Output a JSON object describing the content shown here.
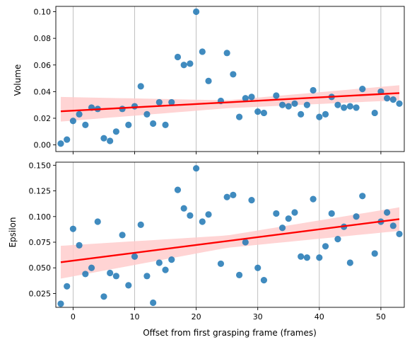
{
  "chart_data": [
    {
      "type": "scatter",
      "title": "",
      "xlabel": "",
      "ylabel": "Volume",
      "xlim": [
        -2.8,
        53.8
      ],
      "ylim": [
        -0.005,
        0.104
      ],
      "xticks": [
        0,
        10,
        20,
        30,
        40,
        50
      ],
      "xtick_labels": [
        "",
        "",
        "",
        "",
        "",
        ""
      ],
      "yticks": [
        0.0,
        0.02,
        0.04,
        0.06,
        0.08,
        0.1
      ],
      "ytick_labels": [
        "0.00",
        "0.02",
        "0.04",
        "0.06",
        "0.08",
        "0.10"
      ],
      "grid": "vertical",
      "points": [
        [
          -2,
          0.001
        ],
        [
          -1,
          0.004
        ],
        [
          0,
          0.018
        ],
        [
          1,
          0.023
        ],
        [
          2,
          0.015
        ],
        [
          3,
          0.028
        ],
        [
          4,
          0.027
        ],
        [
          5,
          0.005
        ],
        [
          6,
          0.003
        ],
        [
          7,
          0.01
        ],
        [
          8,
          0.027
        ],
        [
          9,
          0.015
        ],
        [
          10,
          0.029
        ],
        [
          11,
          0.044
        ],
        [
          12,
          0.023
        ],
        [
          13,
          0.016
        ],
        [
          14,
          0.032
        ],
        [
          15,
          0.015
        ],
        [
          16,
          0.032
        ],
        [
          17,
          0.066
        ],
        [
          18,
          0.06
        ],
        [
          19,
          0.061
        ],
        [
          20,
          0.1
        ],
        [
          21,
          0.07
        ],
        [
          22,
          0.048
        ],
        [
          24,
          0.033
        ],
        [
          25,
          0.069
        ],
        [
          26,
          0.053
        ],
        [
          27,
          0.021
        ],
        [
          28,
          0.035
        ],
        [
          29,
          0.036
        ],
        [
          30,
          0.025
        ],
        [
          31,
          0.024
        ],
        [
          33,
          0.037
        ],
        [
          34,
          0.03
        ],
        [
          35,
          0.029
        ],
        [
          36,
          0.031
        ],
        [
          37,
          0.023
        ],
        [
          38,
          0.03
        ],
        [
          39,
          0.041
        ],
        [
          40,
          0.021
        ],
        [
          41,
          0.023
        ],
        [
          42,
          0.036
        ],
        [
          43,
          0.03
        ],
        [
          44,
          0.028
        ],
        [
          45,
          0.029
        ],
        [
          46,
          0.028
        ],
        [
          47,
          0.042
        ],
        [
          49,
          0.024
        ],
        [
          50,
          0.04
        ],
        [
          51,
          0.035
        ],
        [
          52,
          0.034
        ],
        [
          53,
          0.031
        ]
      ],
      "fit_line": {
        "x": [
          -2,
          53
        ],
        "y": [
          0.0252,
          0.0389
        ]
      },
      "ci_band": {
        "x": [
          -2,
          25,
          53
        ],
        "lower": [
          0.0175,
          0.0275,
          0.0335
        ],
        "upper": [
          0.036,
          0.0335,
          0.0448
        ]
      },
      "colors": {
        "points": "#1f77b4",
        "fit": "#ff0000",
        "band": "#ffcccc",
        "grid": "#b0b0b0"
      }
    },
    {
      "type": "scatter",
      "title": "",
      "xlabel": "Offset from first grasping frame (frames)",
      "ylabel": "Epsilon",
      "xlim": [
        -2.8,
        53.8
      ],
      "ylim": [
        0.0115,
        0.153
      ],
      "xticks": [
        0,
        10,
        20,
        30,
        40,
        50
      ],
      "xtick_labels": [
        "0",
        "10",
        "20",
        "30",
        "40",
        "50"
      ],
      "yticks": [
        0.025,
        0.05,
        0.075,
        0.1,
        0.125,
        0.15
      ],
      "ytick_labels": [
        "0.025",
        "0.050",
        "0.075",
        "0.100",
        "0.125",
        "0.150"
      ],
      "grid": "vertical",
      "points": [
        [
          -2,
          0.015
        ],
        [
          -1,
          0.032
        ],
        [
          0,
          0.088
        ],
        [
          1,
          0.072
        ],
        [
          2,
          0.044
        ],
        [
          3,
          0.05
        ],
        [
          4,
          0.095
        ],
        [
          5,
          0.022
        ],
        [
          6,
          0.045
        ],
        [
          7,
          0.042
        ],
        [
          8,
          0.082
        ],
        [
          9,
          0.033
        ],
        [
          10,
          0.061
        ],
        [
          11,
          0.092
        ],
        [
          12,
          0.042
        ],
        [
          13,
          0.016
        ],
        [
          14,
          0.055
        ],
        [
          15,
          0.048
        ],
        [
          16,
          0.058
        ],
        [
          17,
          0.126
        ],
        [
          18,
          0.108
        ],
        [
          19,
          0.101
        ],
        [
          20,
          0.147
        ],
        [
          21,
          0.095
        ],
        [
          22,
          0.102
        ],
        [
          24,
          0.054
        ],
        [
          25,
          0.119
        ],
        [
          26,
          0.121
        ],
        [
          27,
          0.043
        ],
        [
          28,
          0.075
        ],
        [
          29,
          0.116
        ],
        [
          30,
          0.05
        ],
        [
          31,
          0.038
        ],
        [
          33,
          0.103
        ],
        [
          34,
          0.089
        ],
        [
          35,
          0.098
        ],
        [
          36,
          0.104
        ],
        [
          37,
          0.061
        ],
        [
          38,
          0.06
        ],
        [
          39,
          0.117
        ],
        [
          40,
          0.06
        ],
        [
          41,
          0.071
        ],
        [
          42,
          0.103
        ],
        [
          43,
          0.078
        ],
        [
          44,
          0.09
        ],
        [
          45,
          0.055
        ],
        [
          46,
          0.1
        ],
        [
          47,
          0.12
        ],
        [
          49,
          0.064
        ],
        [
          50,
          0.095
        ],
        [
          51,
          0.104
        ],
        [
          52,
          0.091
        ],
        [
          53,
          0.083
        ]
      ],
      "fit_line": {
        "x": [
          -2,
          53
        ],
        "y": [
          0.0555,
          0.0975
        ]
      },
      "ci_band": {
        "x": [
          -2,
          25,
          53
        ],
        "lower": [
          0.0395,
          0.0695,
          0.086
        ],
        "upper": [
          0.0715,
          0.0815,
          0.109
        ]
      },
      "colors": {
        "points": "#1f77b4",
        "fit": "#ff0000",
        "band": "#ffcccc",
        "grid": "#b0b0b0"
      }
    }
  ]
}
